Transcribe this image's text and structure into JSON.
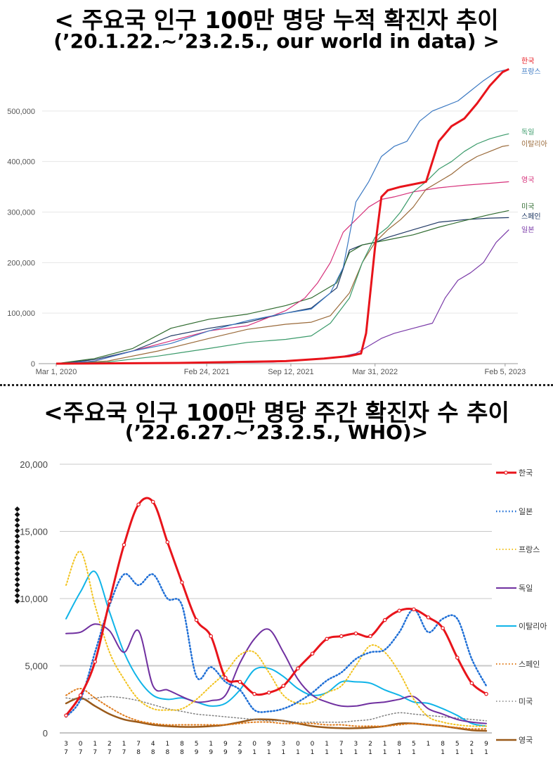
{
  "titles": {
    "chart1_line1": "< 주요국 인구 100만 명당 누적 확진자 추이",
    "chart1_line2": "(’20.1.22.~’23.2.5., our world in data) >",
    "chart2_line1": "<주요국 인구 100만 명당 주간 확진자 수 추이",
    "chart2_line2": "(’22.6.27.~’23.2.5., WHO)>"
  },
  "chart_data": [
    {
      "type": "line",
      "title": "< 주요국 인구 100만 명당 누적 확진자 추이 (’20.1.22.~’23.2.5., our world in data) >",
      "ylim": [
        0,
        600000
      ],
      "yticks": [
        0,
        100000,
        200000,
        300000,
        400000,
        500000
      ],
      "ytick_labels": [
        "0",
        "100,000",
        "200,000",
        "300,000",
        "400,000",
        "500,000"
      ],
      "xlim": [
        0,
        36.2
      ],
      "xticks": [
        0,
        11.8,
        18.4,
        25,
        35.2
      ],
      "xtick_labels": [
        "Mar 1, 2020",
        "Feb 24, 2021",
        "Sep 12, 2021",
        "Mar 31, 2022",
        "Feb 5, 2023"
      ],
      "grid": "horizontal",
      "legend": "end-of-line labels, right",
      "series": [
        {
          "name": "한국",
          "color": "#e8141b",
          "width": 3,
          "x": [
            0,
            10,
            18,
            21,
            23,
            23.9,
            24.3,
            25,
            25.5,
            26,
            27,
            28,
            29,
            30,
            31,
            32,
            33,
            34,
            35,
            35.5
          ],
          "y": [
            0,
            1500,
            5000,
            10000,
            15000,
            20000,
            60000,
            230000,
            330000,
            343000,
            350000,
            355000,
            360000,
            440000,
            470000,
            485000,
            515000,
            550000,
            577000,
            583000
          ]
        },
        {
          "name": "프랑스",
          "color": "#3a78c2",
          "width": 1.2,
          "x": [
            0,
            3,
            6,
            9,
            12,
            15,
            18,
            20,
            21.5,
            22.5,
            23.5,
            24.5,
            25.5,
            26.5,
            27.5,
            28.5,
            29.5,
            30.5,
            31.5,
            32.5,
            33.5,
            34.5,
            35.5
          ],
          "y": [
            0,
            5000,
            25000,
            40000,
            65000,
            85000,
            100000,
            108000,
            140000,
            190000,
            320000,
            360000,
            410000,
            430000,
            440000,
            480000,
            500000,
            510000,
            520000,
            540000,
            560000,
            577000,
            583000
          ]
        },
        {
          "name": "독일",
          "color": "#3a9a6a",
          "width": 1.2,
          "x": [
            0,
            4,
            8,
            12,
            15,
            18,
            20,
            21.5,
            23,
            24,
            25,
            26,
            27,
            28,
            29,
            30,
            31,
            32,
            33,
            34,
            35,
            35.5
          ],
          "y": [
            0,
            3000,
            15000,
            30000,
            42000,
            48000,
            55000,
            80000,
            130000,
            200000,
            250000,
            270000,
            300000,
            340000,
            360000,
            385000,
            400000,
            420000,
            435000,
            445000,
            452000,
            455000
          ]
        },
        {
          "name": "이탈리아",
          "color": "#9a6a3a",
          "width": 1.2,
          "x": [
            0,
            4,
            8,
            12,
            15,
            18,
            20,
            21.5,
            23,
            24,
            25,
            26,
            27,
            28,
            29,
            30,
            31,
            32,
            33,
            34,
            35,
            35.5
          ],
          "y": [
            0,
            5000,
            25000,
            50000,
            68000,
            78000,
            82000,
            95000,
            140000,
            200000,
            240000,
            265000,
            285000,
            310000,
            345000,
            360000,
            375000,
            395000,
            410000,
            420000,
            430000,
            432000
          ]
        },
        {
          "name": "영국",
          "color": "#d6307a",
          "width": 1.2,
          "x": [
            0,
            3,
            6,
            9,
            12,
            15,
            18,
            19.5,
            20.5,
            21.5,
            22.5,
            23.5,
            24.5,
            25.5,
            26.5,
            28,
            30,
            32,
            34,
            35.5
          ],
          "y": [
            0,
            5000,
            25000,
            45000,
            65000,
            75000,
            105000,
            130000,
            160000,
            200000,
            260000,
            285000,
            310000,
            325000,
            330000,
            340000,
            348000,
            353000,
            357000,
            360000
          ]
        },
        {
          "name": "미국",
          "color": "#2f6b2f",
          "width": 1.2,
          "x": [
            0,
            3,
            6,
            9,
            12,
            15,
            18,
            20,
            22,
            23,
            24,
            25,
            26,
            28,
            30,
            32,
            34,
            35.5
          ],
          "y": [
            0,
            10000,
            30000,
            70000,
            88000,
            98000,
            115000,
            130000,
            160000,
            220000,
            235000,
            240000,
            245000,
            255000,
            270000,
            283000,
            295000,
            303000
          ]
        },
        {
          "name": "스페인",
          "color": "#1f3864",
          "width": 1.2,
          "x": [
            0,
            3,
            6,
            9,
            12,
            15,
            18,
            20,
            22,
            23,
            24,
            25,
            26,
            28,
            30,
            32,
            34,
            35.5
          ],
          "y": [
            0,
            8000,
            25000,
            55000,
            70000,
            82000,
            100000,
            110000,
            150000,
            225000,
            235000,
            240000,
            250000,
            265000,
            280000,
            285000,
            288000,
            289000
          ]
        },
        {
          "name": "일본",
          "color": "#7a3aa8",
          "width": 1.2,
          "x": [
            0,
            10,
            17,
            20,
            22,
            23.5,
            24.5,
            25.5,
            26.5,
            28,
            29.5,
            30.5,
            31.5,
            32.5,
            33.5,
            34.5,
            35.5
          ],
          "y": [
            0,
            1000,
            3000,
            8000,
            12000,
            20000,
            35000,
            50000,
            60000,
            70000,
            80000,
            130000,
            165000,
            180000,
            200000,
            240000,
            265000
          ]
        }
      ]
    },
    {
      "type": "line",
      "title": "<주요국 인구 100만 명당 주간 확진자 수 추이 (’22.6.27.~’23.2.5., WHO)>",
      "ylim": [
        0,
        20000
      ],
      "yticks": [
        0,
        5000,
        10000,
        15000,
        20000
      ],
      "ytick_labels": [
        "0",
        "5,000",
        "10,000",
        "15,000",
        "20,000"
      ],
      "ylabel": "◆◆◆◆◆◆◆◆◆◆◆◆◆◆◆◆◆◆",
      "categories": [
        "3 7",
        "0 7",
        "1 7",
        "2 7",
        "1 7",
        "7 8",
        "4 8",
        "1 8",
        "8 8",
        "5 9",
        "1 9",
        "9 9",
        "2 9",
        "0 1",
        "9 1",
        "3 1",
        "0 1",
        "0 1",
        "1 1",
        "7 1",
        "3 1",
        "2 1",
        "1 1",
        "8 1",
        "5 1",
        "1",
        "8 1",
        "5 1",
        "2 1",
        "9 1"
      ],
      "grid": "horizontal",
      "legend": "right",
      "series": [
        {
          "name": "한국",
          "color": "#e8141b",
          "width": 3,
          "style": "solid",
          "markers": true,
          "values": [
            1300,
            2800,
            5300,
            9800,
            14000,
            17000,
            17200,
            14200,
            11200,
            8400,
            7200,
            4100,
            3800,
            2900,
            3000,
            3500,
            4800,
            5900,
            7000,
            7200,
            7400,
            7200,
            8400,
            9100,
            9200,
            8600,
            7800,
            5600,
            3700,
            2900
          ]
        },
        {
          "name": "일본",
          "color": "#1f6fd6",
          "width": 2.5,
          "style": "dotted",
          "values": [
            1200,
            2500,
            6000,
            9500,
            11800,
            11000,
            11800,
            10000,
            9500,
            4200,
            4900,
            3800,
            3200,
            1700,
            1600,
            1800,
            2300,
            3000,
            3900,
            4500,
            5500,
            6000,
            6200,
            7500,
            9200,
            7500,
            8500,
            8500,
            5500,
            3500
          ]
        },
        {
          "name": "프랑스",
          "color": "#f2c21b",
          "width": 2,
          "style": "dotted",
          "values": [
            11000,
            13500,
            9500,
            6000,
            4000,
            2500,
            1800,
            1700,
            1800,
            2500,
            3500,
            4500,
            5800,
            6000,
            4500,
            2800,
            2200,
            2300,
            3000,
            3500,
            5000,
            6500,
            6000,
            4500,
            2500,
            1200,
            800,
            600,
            500,
            500
          ]
        },
        {
          "name": "독일",
          "color": "#7030a0",
          "width": 2,
          "style": "solid",
          "values": [
            7400,
            7500,
            8100,
            7600,
            6000,
            7600,
            3500,
            3200,
            2700,
            2300,
            2400,
            2800,
            5200,
            7000,
            7700,
            6000,
            4000,
            2800,
            2300,
            2000,
            2000,
            2200,
            2300,
            2500,
            2700,
            1800,
            1400,
            1000,
            800,
            700
          ]
        },
        {
          "name": "이탈리아",
          "color": "#10b4e8",
          "width": 2,
          "style": "solid",
          "values": [
            8500,
            10500,
            12000,
            9000,
            6000,
            4000,
            2800,
            2500,
            2600,
            2300,
            2000,
            2200,
            3200,
            4700,
            4800,
            4200,
            3300,
            2800,
            3000,
            3800,
            3800,
            3700,
            3200,
            2800,
            2300,
            2200,
            1800,
            1300,
            700,
            500
          ]
        },
        {
          "name": "스페인",
          "color": "#e07b1a",
          "width": 2,
          "style": "dotted",
          "values": [
            2800,
            3300,
            2600,
            1900,
            1300,
            900,
            700,
            600,
            600,
            600,
            600,
            600,
            700,
            800,
            800,
            700,
            700,
            700,
            600,
            600,
            500,
            500,
            500,
            600,
            700,
            600,
            500,
            400,
            300,
            300
          ]
        },
        {
          "name": "미국",
          "color": "#808080",
          "width": 1.5,
          "style": "dotted",
          "values": [
            2600,
            2500,
            2600,
            2700,
            2600,
            2400,
            2100,
            1800,
            1600,
            1400,
            1300,
            1200,
            1100,
            1000,
            900,
            900,
            800,
            800,
            800,
            800,
            900,
            1000,
            1300,
            1500,
            1400,
            1300,
            1200,
            1100,
            1000,
            900
          ]
        },
        {
          "name": "영국",
          "color": "#9a5a1a",
          "width": 2.5,
          "style": "solid",
          "values": [
            2200,
            2600,
            2000,
            1400,
            1000,
            800,
            600,
            500,
            450,
            450,
            500,
            600,
            800,
            1000,
            1000,
            900,
            700,
            500,
            400,
            350,
            350,
            400,
            500,
            700,
            700,
            600,
            500,
            350,
            200,
            150
          ]
        }
      ]
    }
  ]
}
